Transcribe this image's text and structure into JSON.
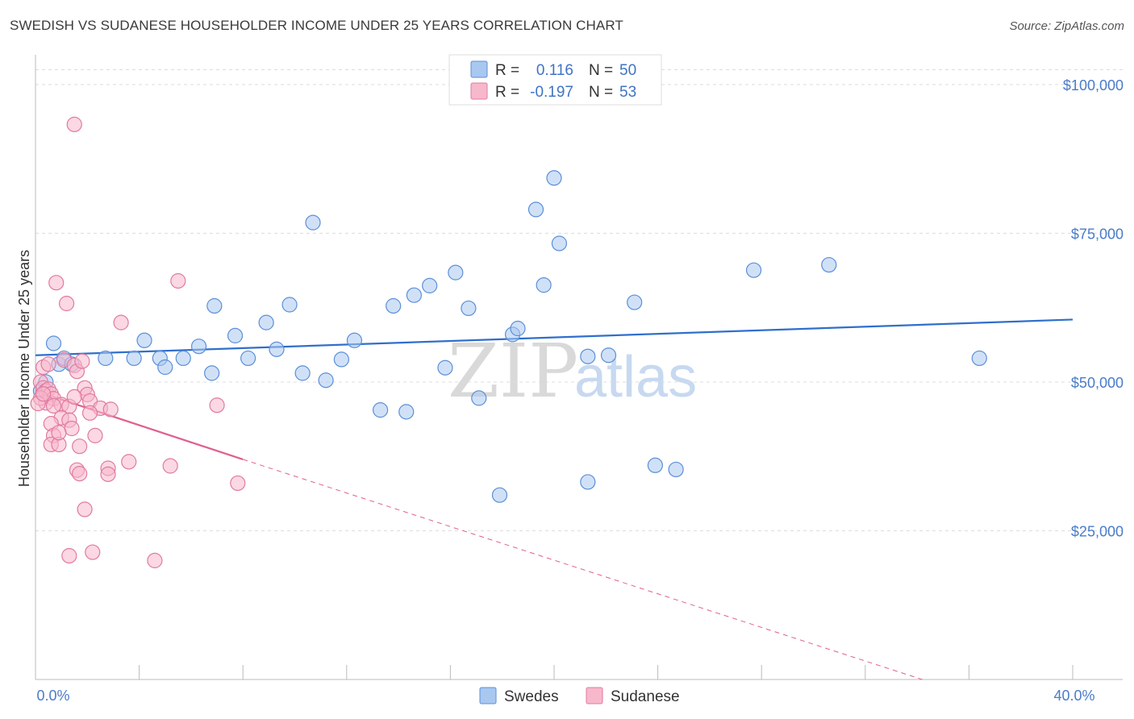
{
  "title": "SWEDISH VS SUDANESE HOUSEHOLDER INCOME UNDER 25 YEARS CORRELATION CHART",
  "source": "Source: ZipAtlas.com",
  "watermark": {
    "zip": "ZIP",
    "atlas": "atlas"
  },
  "legend": {
    "rows": [
      {
        "r_label": "R =",
        "r_value": "0.116",
        "n_label": "N =",
        "n_value": "50",
        "color": "#a9c8f0",
        "stroke": "#5b8fd8"
      },
      {
        "r_label": "R =",
        "r_value": "-0.197",
        "n_label": "N =",
        "n_value": "53",
        "color": "#f7b8cc",
        "stroke": "#e07aa0"
      }
    ]
  },
  "bottom_legend": [
    {
      "label": "Swedes",
      "color": "#a9c8f0",
      "stroke": "#5b8fd8"
    },
    {
      "label": "Sudanese",
      "color": "#f7b8cc",
      "stroke": "#e07aa0"
    }
  ],
  "chart_data": {
    "type": "scatter",
    "title": "SWEDISH VS SUDANESE HOUSEHOLDER INCOME UNDER 25 YEARS CORRELATION CHART",
    "xlabel": "",
    "ylabel": "Householder Income Under 25 years",
    "xlim": [
      0,
      40
    ],
    "ylim": [
      0,
      105000
    ],
    "x_tick_labels": [
      {
        "value": 0,
        "label": "0.0%"
      },
      {
        "value": 40,
        "label": "40.0%"
      }
    ],
    "y_ticks": [
      {
        "value": 25000,
        "label": "$25,000"
      },
      {
        "value": 50000,
        "label": "$50,000"
      },
      {
        "value": 75000,
        "label": "$75,000"
      },
      {
        "value": 100000,
        "label": "$100,000"
      }
    ],
    "series": [
      {
        "name": "Swedes",
        "color": "#a9c8f0",
        "stroke": "#5b8fd8",
        "line_color": "#2f6fcc",
        "trend": {
          "x0": 0,
          "y0": 54500,
          "x1": 40,
          "y1": 60500,
          "dashed_after": null
        },
        "points": [
          [
            0.7,
            56500
          ],
          [
            0.9,
            53000
          ],
          [
            1.1,
            54000
          ],
          [
            1.4,
            53000
          ],
          [
            2.7,
            54000
          ],
          [
            3.8,
            54000
          ],
          [
            4.2,
            57000
          ],
          [
            4.8,
            54000
          ],
          [
            5.0,
            52500
          ],
          [
            5.7,
            54000
          ],
          [
            6.3,
            56000
          ],
          [
            6.8,
            51500
          ],
          [
            6.9,
            62800
          ],
          [
            7.7,
            57800
          ],
          [
            8.2,
            54000
          ],
          [
            8.9,
            60000
          ],
          [
            9.3,
            55500
          ],
          [
            9.8,
            63000
          ],
          [
            10.3,
            51500
          ],
          [
            10.7,
            76800
          ],
          [
            11.2,
            50300
          ],
          [
            11.8,
            53800
          ],
          [
            12.3,
            57000
          ],
          [
            13.3,
            45300
          ],
          [
            13.8,
            62800
          ],
          [
            14.3,
            45000
          ],
          [
            14.6,
            64600
          ],
          [
            15.2,
            66200
          ],
          [
            15.8,
            52400
          ],
          [
            16.2,
            68400
          ],
          [
            16.7,
            62400
          ],
          [
            17.1,
            47300
          ],
          [
            17.9,
            31000
          ],
          [
            18.4,
            58000
          ],
          [
            18.6,
            59000
          ],
          [
            19.3,
            79000
          ],
          [
            19.6,
            66300
          ],
          [
            20.0,
            84300
          ],
          [
            20.2,
            73300
          ],
          [
            21.3,
            33200
          ],
          [
            21.3,
            54300
          ],
          [
            22.1,
            54500
          ],
          [
            23.1,
            63400
          ],
          [
            23.9,
            36000
          ],
          [
            24.7,
            35300
          ],
          [
            27.7,
            68800
          ],
          [
            30.6,
            69700
          ],
          [
            36.4,
            54000
          ],
          [
            0.2,
            48500
          ],
          [
            0.4,
            50000
          ]
        ]
      },
      {
        "name": "Sudanese",
        "color": "#f7b8cc",
        "stroke": "#e07aa0",
        "line_color": "#e0608f",
        "trend": {
          "x0": 0,
          "y0": 48500,
          "x1": 8,
          "y1": 37000,
          "dashed_to_x": 34.2,
          "dashed_to_y": 0
        },
        "points": [
          [
            1.5,
            93300
          ],
          [
            5.5,
            67000
          ],
          [
            0.8,
            66700
          ],
          [
            1.2,
            63200
          ],
          [
            3.3,
            60000
          ],
          [
            0.3,
            52500
          ],
          [
            0.5,
            53000
          ],
          [
            1.1,
            53700
          ],
          [
            1.5,
            52800
          ],
          [
            1.6,
            51800
          ],
          [
            0.2,
            50000
          ],
          [
            0.3,
            49000
          ],
          [
            0.4,
            48500
          ],
          [
            0.5,
            48800
          ],
          [
            0.6,
            48000
          ],
          [
            0.7,
            47200
          ],
          [
            0.4,
            46500
          ],
          [
            0.2,
            47300
          ],
          [
            0.1,
            46400
          ],
          [
            1.0,
            46200
          ],
          [
            0.7,
            46000
          ],
          [
            1.3,
            45900
          ],
          [
            1.9,
            49000
          ],
          [
            2.0,
            47900
          ],
          [
            2.1,
            46800
          ],
          [
            2.5,
            45600
          ],
          [
            2.9,
            45400
          ],
          [
            2.1,
            44800
          ],
          [
            1.0,
            44000
          ],
          [
            1.3,
            43600
          ],
          [
            0.6,
            43000
          ],
          [
            1.4,
            42200
          ],
          [
            0.7,
            41000
          ],
          [
            2.3,
            41000
          ],
          [
            0.6,
            39500
          ],
          [
            0.9,
            39500
          ],
          [
            1.7,
            39200
          ],
          [
            7.0,
            46100
          ],
          [
            3.6,
            36600
          ],
          [
            5.2,
            35900
          ],
          [
            1.6,
            35200
          ],
          [
            2.8,
            35500
          ],
          [
            1.7,
            34600
          ],
          [
            2.8,
            34500
          ],
          [
            7.8,
            33000
          ],
          [
            1.9,
            28600
          ],
          [
            2.2,
            21400
          ],
          [
            1.3,
            20800
          ],
          [
            4.6,
            20000
          ],
          [
            0.9,
            41500
          ],
          [
            1.8,
            53500
          ],
          [
            0.3,
            48000
          ],
          [
            1.5,
            47500
          ]
        ]
      }
    ],
    "grid": true,
    "legend_placement": "top-center"
  }
}
